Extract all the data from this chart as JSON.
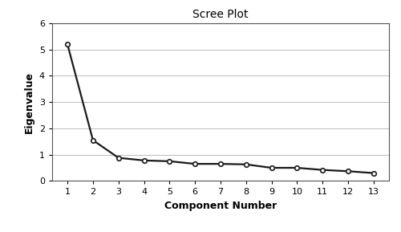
{
  "title": "Scree Plot",
  "xlabel": "Component Number",
  "ylabel": "Eigenvalue",
  "components": [
    1,
    2,
    3,
    4,
    5,
    6,
    7,
    8,
    9,
    10,
    11,
    12,
    13
  ],
  "eigenvalues": [
    5.2,
    1.55,
    0.88,
    0.78,
    0.75,
    0.65,
    0.65,
    0.63,
    0.5,
    0.5,
    0.42,
    0.37,
    0.3
  ],
  "ylim": [
    0,
    6
  ],
  "yticks": [
    0,
    1,
    2,
    3,
    4,
    5,
    6
  ],
  "line_color": "#1a1a1a",
  "marker": "o",
  "marker_size": 4,
  "marker_facecolor": "#ffffff",
  "marker_edgecolor": "#1a1a1a",
  "marker_edgewidth": 1.2,
  "linewidth": 1.6,
  "grid_color": "#bbbbbb",
  "grid_linewidth": 0.7,
  "background_color": "#ffffff",
  "title_fontsize": 10,
  "label_fontsize": 9,
  "tick_fontsize": 8,
  "spine_color": "#555555"
}
